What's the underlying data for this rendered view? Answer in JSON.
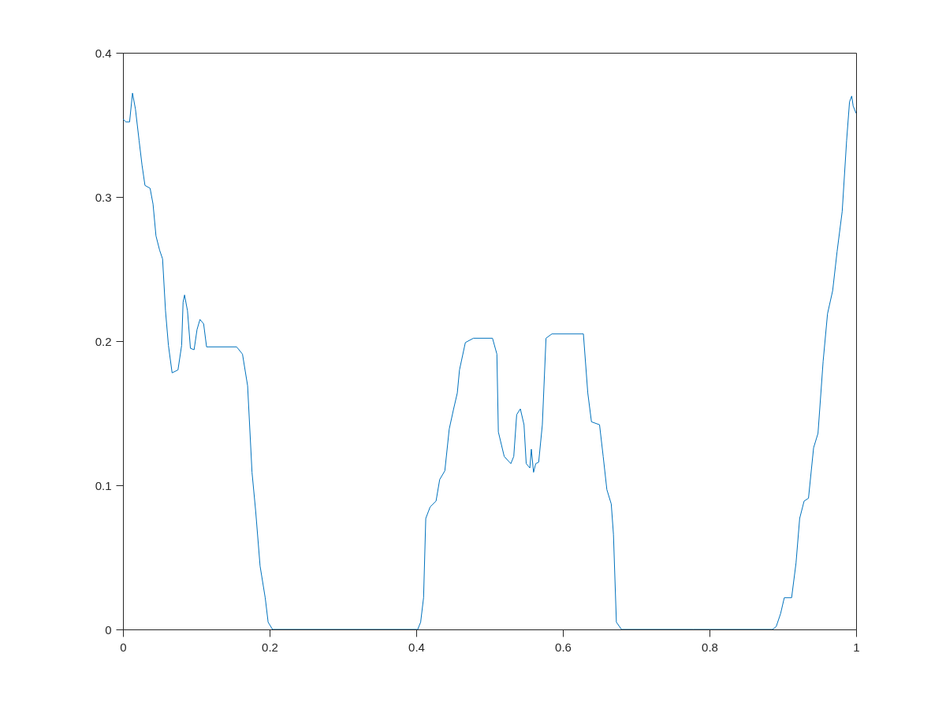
{
  "chart_data": {
    "type": "line",
    "xlim": [
      0,
      1
    ],
    "ylim": [
      0,
      0.4
    ],
    "xticks": [
      0,
      0.2,
      0.4,
      0.6,
      0.8,
      1
    ],
    "yticks": [
      0,
      0.1,
      0.2,
      0.3,
      0.4
    ],
    "grid": false,
    "marker": "none",
    "line_style": "solid",
    "x": [
      0,
      0.004,
      0.009,
      0.013,
      0.017,
      0.022,
      0.026,
      0.03,
      0.037,
      0.041,
      0.045,
      0.05,
      0.054,
      0.058,
      0.062,
      0.067,
      0.071,
      0.075,
      0.08,
      0.082,
      0.084,
      0.088,
      0.092,
      0.097,
      0.101,
      0.105,
      0.11,
      0.114,
      0.155,
      0.163,
      0.17,
      0.176,
      0.181,
      0.187,
      0.194,
      0.198,
      0.204,
      0.3,
      0.402,
      0.406,
      0.41,
      0.413,
      0.419,
      0.427,
      0.432,
      0.439,
      0.445,
      0.451,
      0.456,
      0.459,
      0.467,
      0.478,
      0.504,
      0.51,
      0.512,
      0.52,
      0.529,
      0.533,
      0.537,
      0.542,
      0.547,
      0.55,
      0.555,
      0.557,
      0.56,
      0.563,
      0.567,
      0.572,
      0.577,
      0.585,
      0.628,
      0.634,
      0.639,
      0.65,
      0.655,
      0.66,
      0.666,
      0.669,
      0.673,
      0.68,
      0.778,
      0.886,
      0.891,
      0.897,
      0.902,
      0.912,
      0.918,
      0.923,
      0.929,
      0.935,
      0.942,
      0.948,
      0.955,
      0.961,
      0.968,
      0.974,
      0.981,
      0.987,
      0.991,
      0.994,
      0.996,
      1
    ],
    "series": [
      {
        "color": "#0072bd",
        "values": [
          0.354,
          0.352,
          0.352,
          0.372,
          0.361,
          0.339,
          0.322,
          0.308,
          0.306,
          0.295,
          0.273,
          0.263,
          0.257,
          0.221,
          0.197,
          0.178,
          0.179,
          0.18,
          0.197,
          0.227,
          0.232,
          0.221,
          0.195,
          0.194,
          0.208,
          0.215,
          0.212,
          0.196,
          0.196,
          0.191,
          0.169,
          0.109,
          0.082,
          0.044,
          0.022,
          0.005,
          0,
          0,
          0,
          0.005,
          0.022,
          0.077,
          0.085,
          0.089,
          0.104,
          0.11,
          0.139,
          0.153,
          0.164,
          0.18,
          0.199,
          0.202,
          0.202,
          0.191,
          0.137,
          0.12,
          0.115,
          0.12,
          0.149,
          0.153,
          0.142,
          0.115,
          0.112,
          0.125,
          0.109,
          0.115,
          0.116,
          0.142,
          0.202,
          0.205,
          0.205,
          0.164,
          0.144,
          0.142,
          0.12,
          0.097,
          0.087,
          0.066,
          0.005,
          0,
          0,
          0,
          0.002,
          0.011,
          0.022,
          0.022,
          0.046,
          0.077,
          0.089,
          0.091,
          0.126,
          0.136,
          0.186,
          0.219,
          0.235,
          0.262,
          0.29,
          0.339,
          0.366,
          0.37,
          0.363,
          0.358
        ]
      }
    ]
  }
}
